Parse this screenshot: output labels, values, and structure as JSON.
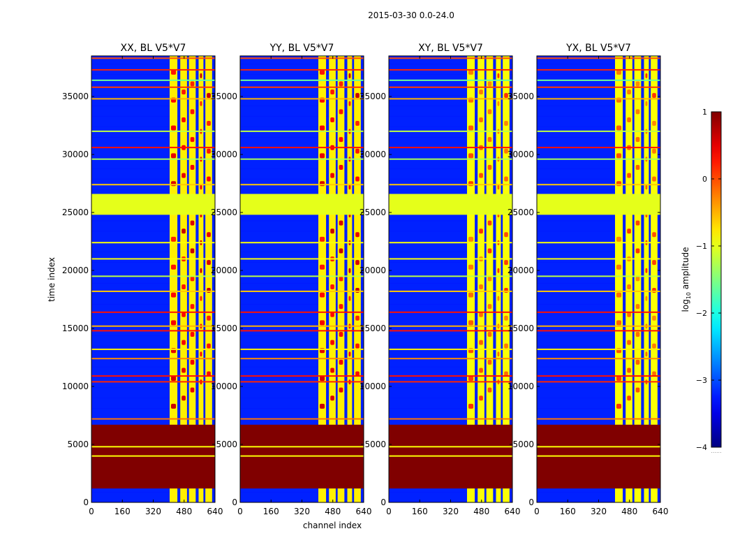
{
  "suptitle": "2015-03-30 0.0-24.0",
  "chart_data": {
    "type": "heatmap",
    "xlabel": "channel index",
    "ylabel": "time index",
    "xlim": [
      0,
      640
    ],
    "ylim": [
      0,
      38500
    ],
    "xticks": [
      0,
      160,
      320,
      480,
      640
    ],
    "yticks": [
      0,
      5000,
      10000,
      15000,
      20000,
      25000,
      30000,
      35000
    ],
    "colorbar": {
      "label": "log10 amplitude",
      "label_main": "log",
      "label_sub": "10",
      "label_rest": " amplitude",
      "min": -4,
      "max": 1,
      "ticks": [
        1,
        0,
        -1,
        -2,
        -3,
        -4
      ],
      "tick_labels": [
        "1",
        "0",
        "−1",
        "−2",
        "−3",
        "−4"
      ],
      "colormap": "jet",
      "minor_label": "......"
    },
    "panels": [
      {
        "title": "XX, BL V5*V7",
        "pol": "XX",
        "baseline": "V5*V7"
      },
      {
        "title": "YY, BL V5*V7",
        "pol": "YY",
        "baseline": "V5*V7"
      },
      {
        "title": "XY, BL V5*V7",
        "pol": "XY",
        "baseline": "V5*V7"
      },
      {
        "title": "YX, BL V5*V7",
        "pol": "YX",
        "baseline": "V5*V7"
      }
    ],
    "flagged_time_ranges": [
      {
        "from": 1200,
        "to": 6700,
        "log10_amplitude": 1.0
      },
      {
        "from": 24800,
        "to": 26600,
        "log10_amplitude": -1.0
      }
    ],
    "high_amplitude_channel_ranges": [
      [
        405,
        445
      ],
      [
        460,
        495
      ],
      [
        505,
        540
      ],
      [
        555,
        580
      ],
      [
        590,
        625
      ]
    ],
    "horizontal_rfi_lines": [
      {
        "t": 7200,
        "v": -0.2
      },
      {
        "t": 10400,
        "v": 0.2
      },
      {
        "t": 10900,
        "v": 0.3
      },
      {
        "t": 12400,
        "v": -0.3
      },
      {
        "t": 13200,
        "v": -0.8
      },
      {
        "t": 14800,
        "v": 0.3
      },
      {
        "t": 15200,
        "v": -0.5
      },
      {
        "t": 16400,
        "v": 0.3
      },
      {
        "t": 18200,
        "v": -0.6
      },
      {
        "t": 19500,
        "v": -1.2
      },
      {
        "t": 21000,
        "v": -0.9
      },
      {
        "t": 22400,
        "v": -0.9
      },
      {
        "t": 27400,
        "v": -0.6
      },
      {
        "t": 29600,
        "v": -1.3
      },
      {
        "t": 30600,
        "v": 0.3
      },
      {
        "t": 32000,
        "v": -1.2
      },
      {
        "t": 34800,
        "v": -0.5
      },
      {
        "t": 35800,
        "v": 0.1
      },
      {
        "t": 36400,
        "v": -1.6
      },
      {
        "t": 37300,
        "v": 0.2
      },
      {
        "t": 38300,
        "v": 0.0
      }
    ]
  }
}
